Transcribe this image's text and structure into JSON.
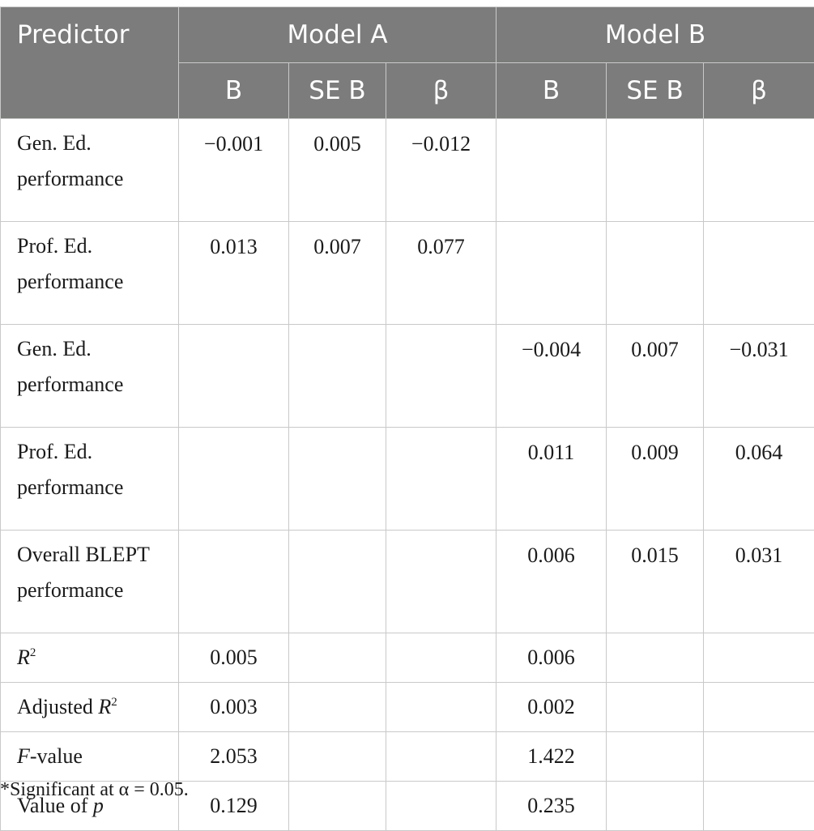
{
  "header": {
    "predictor": "Predictor",
    "model_a": "Model A",
    "model_b": "Model B",
    "sub": [
      "B",
      "SE B",
      "β",
      "B",
      "SE B",
      "β"
    ]
  },
  "rows": [
    {
      "label1": "Gen. Ed.",
      "label2": "performance",
      "a_b": "−0.001",
      "a_se": "0.005",
      "a_beta": "−0.012",
      "b_b": "",
      "b_se": "",
      "b_beta": ""
    },
    {
      "label1": "Prof. Ed.",
      "label2": "performance",
      "a_b": "0.013",
      "a_se": "0.007",
      "a_beta": "0.077",
      "b_b": "",
      "b_se": "",
      "b_beta": ""
    },
    {
      "label1": "Gen. Ed.",
      "label2": "performance",
      "a_b": "",
      "a_se": "",
      "a_beta": "",
      "b_b": "−0.004",
      "b_se": "0.007",
      "b_beta": "−0.031"
    },
    {
      "label1": "Prof. Ed.",
      "label2": "performance",
      "a_b": "",
      "a_se": "",
      "a_beta": "",
      "b_b": "0.011",
      "b_se": "0.009",
      "b_beta": "0.064"
    },
    {
      "label1": "Overall BLEPT",
      "label2": "performance",
      "a_b": "",
      "a_se": "",
      "a_beta": "",
      "b_b": "0.006",
      "b_se": "0.015",
      "b_beta": "0.031"
    }
  ],
  "stats": {
    "r2": {
      "label": "R",
      "sup": "2",
      "a": "0.005",
      "b": "0.006"
    },
    "adj_r2": {
      "prefix": "Adjusted ",
      "label": "R",
      "sup": "2",
      "a": "0.003",
      "b": "0.002"
    },
    "f": {
      "label": "F",
      "suffix": "-value",
      "a": "2.053",
      "b": "1.422"
    },
    "p": {
      "prefix": "Value of ",
      "label": "p",
      "a": "0.129",
      "b": "0.235"
    }
  },
  "footnote": "*Significant at α = 0.05."
}
